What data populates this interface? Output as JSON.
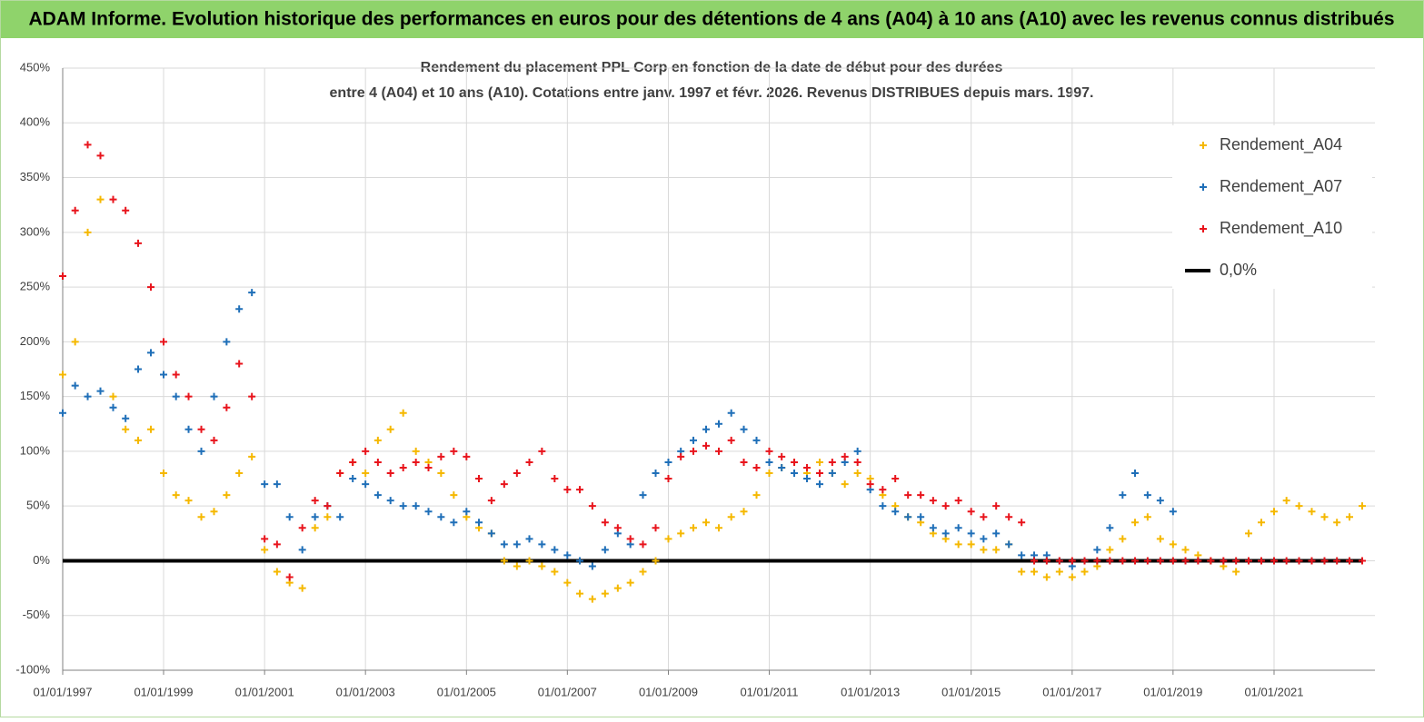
{
  "header": {
    "title": "ADAM Informe. Evolution historique des performances en euros pour des détentions de 4 ans (A04) à 10 ans (A10) avec les revenus connus distribués"
  },
  "chart_data": {
    "type": "scatter",
    "title": [
      "Rendement du placement PPL Corp en fonction de la date de début pour des durées",
      "entre 4 (A04) et 10 ans (A10).  Cotations entre janv. 1997 et févr. 2026. Revenus DISTRIBUES depuis mars. 1997."
    ],
    "xlim": [
      "01/01/1997",
      "01/01/2023"
    ],
    "xticks": [
      "01/01/1997",
      "01/01/1999",
      "01/01/2001",
      "01/01/2003",
      "01/01/2005",
      "01/01/2007",
      "01/01/2009",
      "01/01/2011",
      "01/01/2013",
      "01/01/2015",
      "01/01/2017",
      "01/01/2019",
      "01/01/2021"
    ],
    "ylim": [
      -100,
      450
    ],
    "yticks": [
      {
        "value": -100,
        "label": "-100%"
      },
      {
        "value": -50,
        "label": "-50%"
      },
      {
        "value": 0,
        "label": "0%"
      },
      {
        "value": 50,
        "label": "50%"
      },
      {
        "value": 100,
        "label": "100%"
      },
      {
        "value": 150,
        "label": "150%"
      },
      {
        "value": 200,
        "label": "200%"
      },
      {
        "value": 250,
        "label": "250%"
      },
      {
        "value": 300,
        "label": "300%"
      },
      {
        "value": 350,
        "label": "350%"
      },
      {
        "value": 400,
        "label": "400%"
      },
      {
        "value": 450,
        "label": "450%"
      }
    ],
    "grid": true,
    "legend": "right",
    "x": [
      "01/01/1997",
      "01/04/1997",
      "01/07/1997",
      "01/10/1997",
      "01/01/1998",
      "01/04/1998",
      "01/07/1998",
      "01/10/1998",
      "01/01/1999",
      "01/04/1999",
      "01/07/1999",
      "01/10/1999",
      "01/01/2000",
      "01/04/2000",
      "01/07/2000",
      "01/10/2000",
      "01/01/2001",
      "01/04/2001",
      "01/07/2001",
      "01/10/2001",
      "01/01/2002",
      "01/04/2002",
      "01/07/2002",
      "01/10/2002",
      "01/01/2003",
      "01/04/2003",
      "01/07/2003",
      "01/10/2003",
      "01/01/2004",
      "01/04/2004",
      "01/07/2004",
      "01/10/2004",
      "01/01/2005",
      "01/04/2005",
      "01/07/2005",
      "01/10/2005",
      "01/01/2006",
      "01/04/2006",
      "01/07/2006",
      "01/10/2006",
      "01/01/2007",
      "01/04/2007",
      "01/07/2007",
      "01/10/2007",
      "01/01/2008",
      "01/04/2008",
      "01/07/2008",
      "01/10/2008",
      "01/01/2009",
      "01/04/2009",
      "01/07/2009",
      "01/10/2009",
      "01/01/2010",
      "01/04/2010",
      "01/07/2010",
      "01/10/2010",
      "01/01/2011",
      "01/04/2011",
      "01/07/2011",
      "01/10/2011",
      "01/01/2012",
      "01/04/2012",
      "01/07/2012",
      "01/10/2012",
      "01/01/2013",
      "01/04/2013",
      "01/07/2013",
      "01/10/2013",
      "01/01/2014",
      "01/04/2014",
      "01/07/2014",
      "01/10/2014",
      "01/01/2015",
      "01/04/2015",
      "01/07/2015",
      "01/10/2015",
      "01/01/2016",
      "01/04/2016",
      "01/07/2016",
      "01/10/2016",
      "01/01/2017",
      "01/04/2017",
      "01/07/2017",
      "01/10/2017",
      "01/01/2018",
      "01/04/2018",
      "01/07/2018",
      "01/10/2018",
      "01/01/2019",
      "01/04/2019",
      "01/07/2019",
      "01/10/2019",
      "01/01/2020",
      "01/04/2020",
      "01/07/2020",
      "01/10/2020",
      "01/01/2021",
      "01/04/2021",
      "01/07/2021",
      "01/10/2021",
      "01/01/2022",
      "01/04/2022",
      "01/07/2022",
      "01/10/2022"
    ],
    "series": [
      {
        "name": "0,0%",
        "color": "#000000",
        "style": "line",
        "values": [
          0,
          0,
          0,
          0,
          0,
          0,
          0,
          0,
          0,
          0,
          0,
          0,
          0,
          0,
          0,
          0,
          0,
          0,
          0,
          0,
          0,
          0,
          0,
          0,
          0,
          0,
          0,
          0,
          0,
          0,
          0,
          0,
          0,
          0,
          0,
          0,
          0,
          0,
          0,
          0,
          0,
          0,
          0,
          0,
          0,
          0,
          0,
          0,
          0,
          0,
          0,
          0,
          0,
          0,
          0,
          0,
          0,
          0,
          0,
          0,
          0,
          0,
          0,
          0,
          0,
          0,
          0,
          0,
          0,
          0,
          0,
          0,
          0,
          0,
          0,
          0,
          0,
          0,
          0,
          0,
          0,
          0,
          0,
          0,
          0,
          0,
          0,
          0,
          0,
          0,
          0,
          0,
          0,
          0,
          0,
          0,
          0,
          0,
          0,
          0,
          0,
          0,
          0,
          0
        ]
      },
      {
        "name": "Rendement_A04",
        "color": "#f5b800",
        "style": "marker",
        "values": [
          170,
          200,
          300,
          330,
          150,
          120,
          110,
          120,
          80,
          60,
          55,
          40,
          45,
          60,
          80,
          95,
          10,
          -10,
          -20,
          -25,
          30,
          40,
          80,
          90,
          80,
          110,
          120,
          135,
          100,
          90,
          80,
          60,
          40,
          30,
          25,
          0,
          -5,
          0,
          -5,
          -10,
          -20,
          -30,
          -35,
          -30,
          -25,
          -20,
          -10,
          0,
          20,
          25,
          30,
          35,
          30,
          40,
          45,
          60,
          80,
          85,
          90,
          80,
          90,
          80,
          70,
          80,
          75,
          60,
          50,
          40,
          35,
          25,
          20,
          15,
          15,
          10,
          10,
          15,
          -10,
          -10,
          -15,
          -10,
          -15,
          -10,
          -5,
          10,
          20,
          35,
          40,
          20,
          15,
          10,
          5,
          0,
          -5,
          -10,
          25,
          35,
          45,
          55,
          50,
          45,
          40,
          35,
          40,
          50
        ]
      },
      {
        "name": "Rendement_A07",
        "color": "#1f6fb8",
        "style": "marker",
        "values": [
          135,
          160,
          150,
          155,
          140,
          130,
          175,
          190,
          170,
          150,
          120,
          100,
          150,
          200,
          230,
          245,
          70,
          70,
          40,
          10,
          40,
          50,
          40,
          75,
          70,
          60,
          55,
          50,
          50,
          45,
          40,
          35,
          45,
          35,
          25,
          15,
          15,
          20,
          15,
          10,
          5,
          0,
          -5,
          10,
          25,
          15,
          60,
          80,
          90,
          100,
          110,
          120,
          125,
          135,
          120,
          110,
          90,
          85,
          80,
          75,
          70,
          80,
          90,
          100,
          65,
          50,
          45,
          40,
          40,
          30,
          25,
          30,
          25,
          20,
          25,
          15,
          5,
          5,
          5,
          0,
          -5,
          0,
          10,
          30,
          60,
          80,
          60,
          55,
          45,
          null,
          null,
          null,
          null,
          null,
          null,
          null,
          null,
          null,
          null,
          null,
          null,
          null,
          null,
          null
        ]
      },
      {
        "name": "Rendement_A10",
        "color": "#e8141c",
        "style": "marker",
        "values": [
          260,
          320,
          380,
          370,
          330,
          320,
          290,
          250,
          200,
          170,
          150,
          120,
          110,
          140,
          180,
          150,
          20,
          15,
          -15,
          30,
          55,
          50,
          80,
          90,
          100,
          90,
          80,
          85,
          90,
          85,
          95,
          100,
          95,
          75,
          55,
          70,
          80,
          90,
          100,
          75,
          65,
          65,
          50,
          35,
          30,
          20,
          15,
          30,
          75,
          95,
          100,
          105,
          100,
          110,
          90,
          85,
          100,
          95,
          90,
          85,
          80,
          90,
          95,
          90,
          70,
          65,
          75,
          60,
          60,
          55,
          50,
          55,
          45,
          40,
          50,
          40,
          35,
          0,
          0,
          0,
          0,
          0,
          0,
          0,
          0,
          0,
          0,
          0,
          0,
          0,
          0,
          0,
          0,
          0,
          0,
          0,
          0,
          0,
          0,
          0,
          0,
          0,
          0,
          0
        ]
      }
    ]
  }
}
